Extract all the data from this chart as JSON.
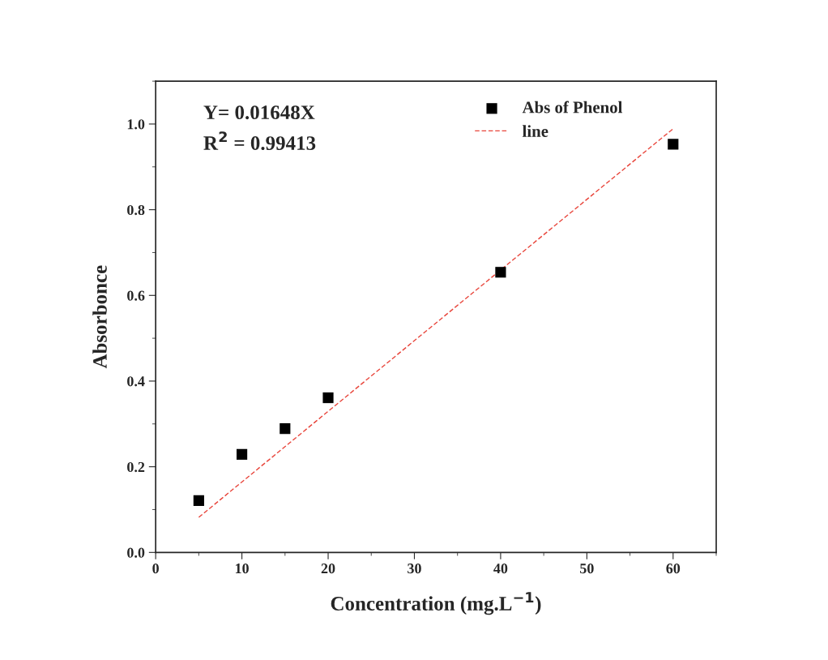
{
  "chart_data": {
    "type": "scatter",
    "xlabel": "Concentration (mg.L$^{−1}$)",
    "ylabel": "Absorbonce",
    "x": [
      5,
      10,
      15,
      20,
      40,
      60
    ],
    "series": [
      {
        "name": "Abs of Phenol",
        "color": "#000000",
        "marker": "square",
        "values": [
          0.121,
          0.229,
          0.289,
          0.361,
          0.654,
          0.953
        ]
      },
      {
        "name": "line",
        "type": "line",
        "color": "#e8443a",
        "marker": "none",
        "line_style": "dashed",
        "x": [
          5,
          60
        ],
        "values": [
          0.082,
          0.989
        ]
      }
    ],
    "annotations": [
      "Y= 0.01648X",
      "R$^{2}$ = 0.99413"
    ],
    "xlim": [
      0,
      65
    ],
    "ylim": [
      0,
      1.1
    ],
    "xticks": [
      0,
      10,
      20,
      30,
      40,
      50,
      60
    ],
    "yticks": [
      {
        "value": 0,
        "label": "0.0"
      },
      0.2,
      0.4,
      0.6,
      0.8,
      {
        "value": 1,
        "label": "1.0"
      }
    ],
    "grid": false,
    "legend": "top right"
  }
}
